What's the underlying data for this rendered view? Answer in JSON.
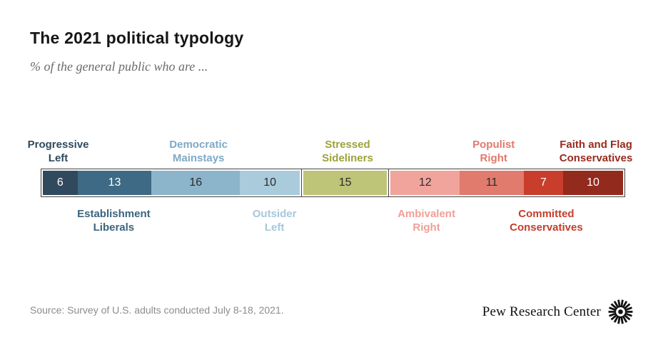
{
  "header": {
    "title": "The 2021 political typology",
    "subtitle": "% of the general public who are ..."
  },
  "footer": {
    "source": "Source: Survey of U.S. adults conducted July 8-18, 2021.",
    "brand": "Pew Research Center",
    "brand_icon": "pew-starburst-icon"
  },
  "colors": {
    "background": "#ffffff",
    "bar_border": "#454545",
    "title_text": "#161616",
    "subtitle_text": "#6b6b6b",
    "source_text": "#8c8c8c"
  },
  "chart_data": {
    "type": "bar",
    "stacked": true,
    "orientation": "horizontal",
    "title": "The 2021 political typology",
    "subtitle": "% of the general public who are ...",
    "unit": "percent of general public",
    "total": 100,
    "categories": [
      "Progressive Left",
      "Establishment Liberals",
      "Democratic Mainstays",
      "Outsider Left",
      "Stressed Sideliners",
      "Ambivalent Right",
      "Populist Right",
      "Committed Conservatives",
      "Faith and Flag Conservatives"
    ],
    "values": [
      6,
      13,
      16,
      10,
      15,
      12,
      11,
      7,
      10
    ],
    "groups": [
      {
        "name": "left-leaning",
        "segments": [
          {
            "label": "Progressive\nLeft",
            "value": 6,
            "color": "#31495c",
            "value_color": "#ffffff",
            "label_color": "#2e4a5e",
            "label_position": "above"
          },
          {
            "label": "Establishment\nLiberals",
            "value": 13,
            "color": "#3e6a85",
            "value_color": "#ffffff",
            "label_color": "#3a6480",
            "label_position": "below"
          },
          {
            "label": "Democratic\nMainstays",
            "value": 16,
            "color": "#8cb4cb",
            "value_color": "#2b2b2b",
            "label_color": "#7fa9c6",
            "label_position": "above"
          },
          {
            "label": "Outsider\nLeft",
            "value": 10,
            "color": "#a9cbdc",
            "value_color": "#2b2b2b",
            "label_color": "#a5c8dc",
            "label_position": "below"
          }
        ]
      },
      {
        "name": "middle",
        "segments": [
          {
            "label": "Stressed\nSideliners",
            "value": 15,
            "color": "#bec478",
            "value_color": "#2b2b2b",
            "label_color": "#9ea13b",
            "label_position": "above"
          }
        ]
      },
      {
        "name": "right-leaning",
        "segments": [
          {
            "label": "Ambivalent\nRight",
            "value": 12,
            "color": "#f0a49b",
            "value_color": "#2b2b2b",
            "label_color": "#f0a096",
            "label_position": "below"
          },
          {
            "label": "Populist\nRight",
            "value": 11,
            "color": "#e07b6e",
            "value_color": "#2b2b2b",
            "label_color": "#e0796c",
            "label_position": "above"
          },
          {
            "label": "Committed\nConservatives",
            "value": 7,
            "color": "#c93d2d",
            "value_color": "#ffffff",
            "label_color": "#c43d2b",
            "label_position": "below"
          },
          {
            "label": "Faith and Flag\nConservatives",
            "value": 10,
            "color": "#932a1e",
            "value_color": "#ffffff",
            "label_color": "#982b1f",
            "label_position": "above"
          }
        ]
      }
    ]
  }
}
